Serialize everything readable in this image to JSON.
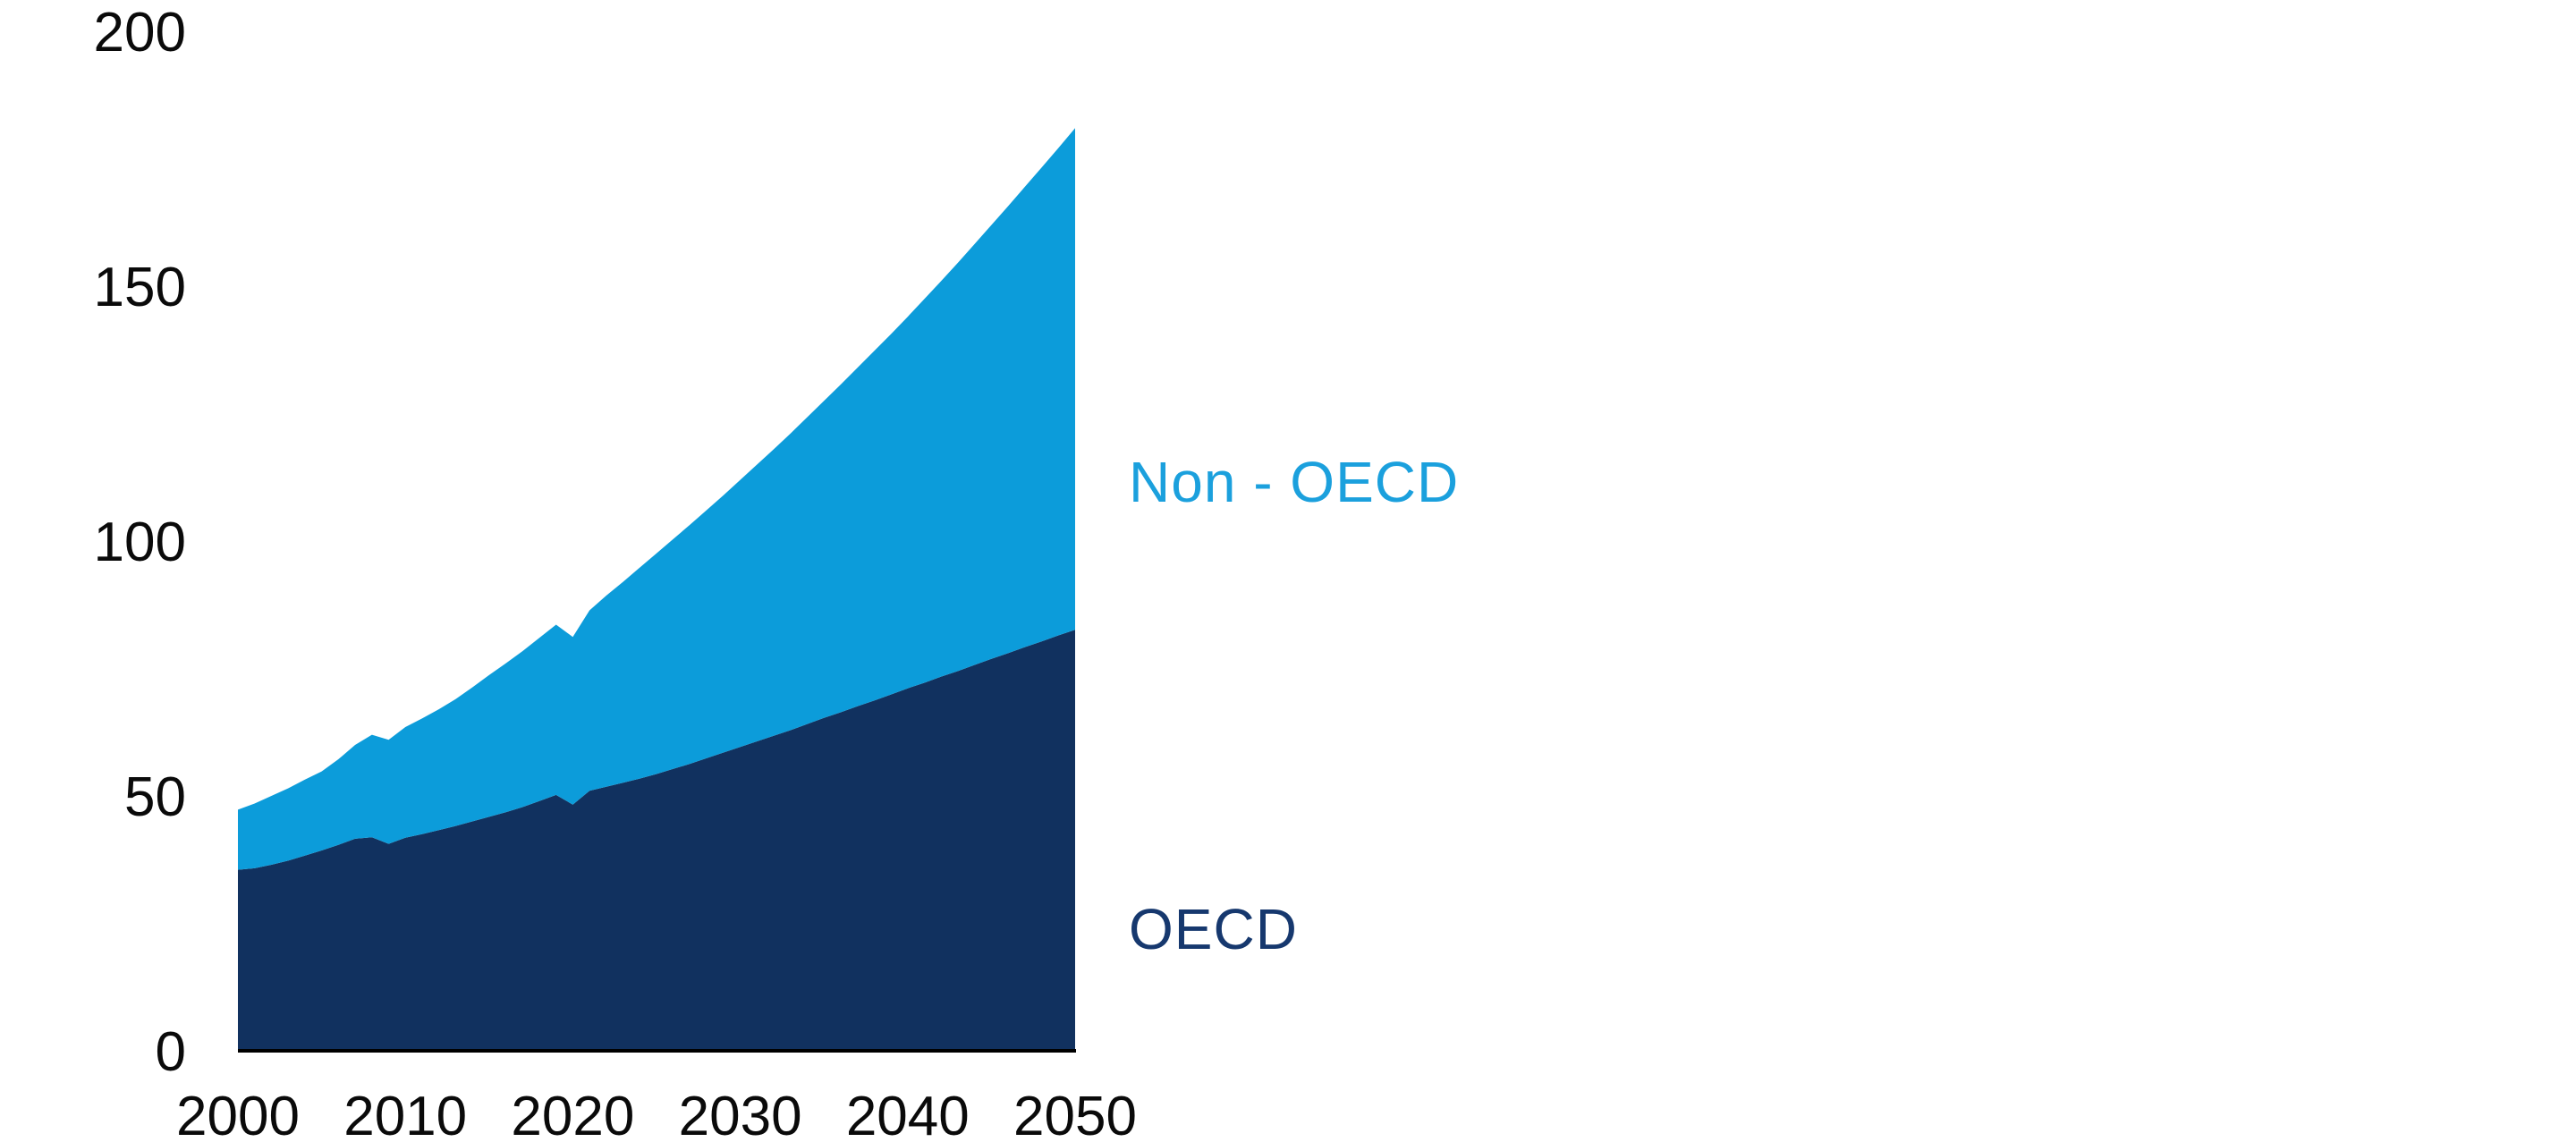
{
  "chart_data": {
    "type": "area",
    "stacked": true,
    "title": "",
    "xlabel": "",
    "ylabel": "",
    "xlim": [
      2000,
      2050
    ],
    "ylim": [
      0,
      200
    ],
    "x_ticks": [
      2000,
      2010,
      2020,
      2030,
      2040,
      2050
    ],
    "y_ticks": [
      0,
      50,
      100,
      150,
      200
    ],
    "grid": false,
    "legend_position": "inline-right-of-area",
    "axis_line_color": "#000000",
    "tick_text_color": "#0a0a0a",
    "background_color": "#ffffff",
    "x": [
      2000,
      2001,
      2002,
      2003,
      2004,
      2005,
      2006,
      2007,
      2008,
      2009,
      2010,
      2011,
      2012,
      2013,
      2014,
      2015,
      2016,
      2017,
      2018,
      2019,
      2020,
      2021,
      2022,
      2023,
      2024,
      2025,
      2026,
      2027,
      2028,
      2029,
      2030,
      2031,
      2032,
      2033,
      2034,
      2035,
      2036,
      2037,
      2038,
      2039,
      2040,
      2041,
      2042,
      2043,
      2044,
      2045,
      2046,
      2047,
      2048,
      2049,
      2050
    ],
    "series": [
      {
        "name": "OECD",
        "color": "#11315F",
        "label_color": "#16386E",
        "values": [
          35.5,
          35.8,
          36.5,
          37.3,
          38.3,
          39.3,
          40.4,
          41.6,
          41.9,
          40.6,
          41.8,
          42.5,
          43.3,
          44.1,
          45.0,
          45.9,
          46.8,
          47.8,
          49.0,
          50.2,
          48.3,
          51.0,
          51.8,
          52.6,
          53.4,
          54.3,
          55.3,
          56.3,
          57.4,
          58.5,
          59.6,
          60.7,
          61.8,
          62.9,
          64.1,
          65.3,
          66.4,
          67.6,
          68.7,
          69.9,
          71.1,
          72.2,
          73.4,
          74.5,
          75.7,
          76.9,
          78.0,
          79.2,
          80.3,
          81.5,
          82.6
        ]
      },
      {
        "name": "Non - OECD",
        "color": "#0C9CDA",
        "label_color": "#1BA0DD",
        "values": [
          11.8,
          12.7,
          13.5,
          14.2,
          14.9,
          15.5,
          16.8,
          18.4,
          20.1,
          20.4,
          21.7,
          22.7,
          23.7,
          24.9,
          26.3,
          27.8,
          29.2,
          30.6,
          32.0,
          33.4,
          32.9,
          35.4,
          37.5,
          39.4,
          41.4,
          43.3,
          45.1,
          46.9,
          48.7,
          50.5,
          52.4,
          54.3,
          56.2,
          58.2,
          60.2,
          62.2,
          64.3,
          66.4,
          68.6,
          70.7,
          72.9,
          75.3,
          77.6,
          80.1,
          82.6,
          85.1,
          87.7,
          90.3,
          93.0,
          95.6,
          98.4
        ]
      }
    ],
    "stacked_totals_2050": 181.0
  }
}
